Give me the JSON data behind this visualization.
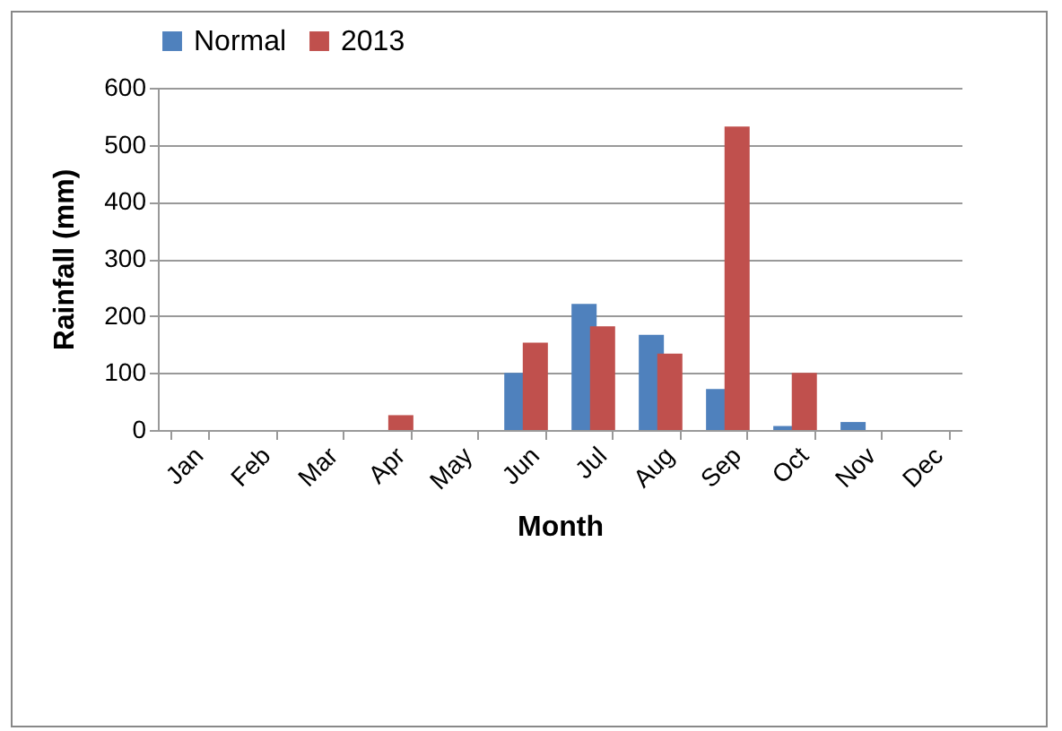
{
  "chart_data": {
    "type": "bar",
    "xlabel": "Month",
    "ylabel": "Rainfall (mm)",
    "categories": [
      "Jan",
      "Feb",
      "Mar",
      "Apr",
      "May",
      "Jun",
      "Jul",
      "Aug",
      "Sep",
      "Oct",
      "Nov",
      "Dec"
    ],
    "series": [
      {
        "name": "Normal",
        "color": "#4f81bd",
        "values": [
          0,
          0,
          0,
          0,
          0,
          100,
          221,
          167,
          72,
          7,
          14,
          0
        ]
      },
      {
        "name": "2013",
        "color": "#c0504d",
        "values": [
          0,
          0,
          0,
          26,
          0,
          153,
          182,
          134,
          532,
          100,
          0,
          0
        ]
      }
    ],
    "ylim": [
      0,
      600
    ],
    "yticks": [
      0,
      100,
      200,
      300,
      400,
      500,
      600
    ],
    "grid": "y",
    "legend": "top"
  }
}
